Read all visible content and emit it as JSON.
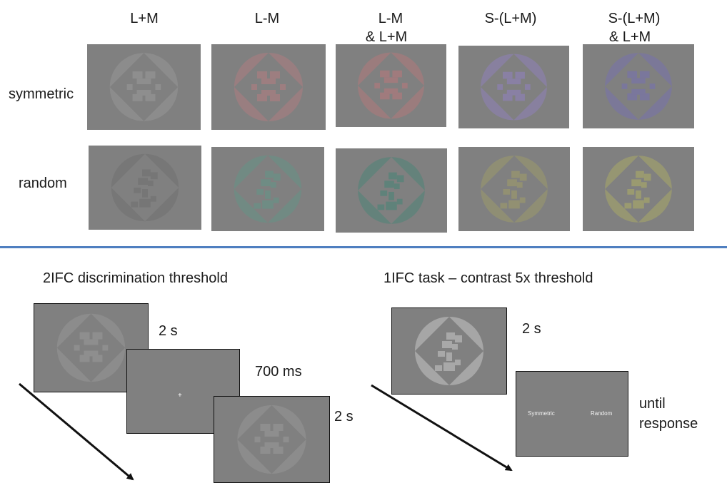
{
  "columns": [
    "L+M",
    "L-M\n& L+M",
    "S-(L+M)\n& L+M",
    "L-M",
    "S-(L+M)"
  ],
  "column_labels": {
    "lm": "L+M",
    "lminusm": "L-M",
    "lminusm_lm_1": "L-M",
    "lminusm_lm_2": "& L+M",
    "s": "S-(L+M)",
    "s_lm_1": "S-(L+M)",
    "s_lm_2": "& L+M"
  },
  "rows": {
    "symmetric": "symmetric",
    "random": "random"
  },
  "stimulus_colors": {
    "lm": "#8e8e8e",
    "lminusm": "#9d7e80",
    "lminusm_lm": "#a07b7d",
    "s": "#8980a4",
    "s_lm": "#7a779c",
    "lm_random": "#767676",
    "lminusm_random": "#6f8c84",
    "lminusm_lm_random": "#5f827a",
    "s_random": "#929072",
    "s_lm_random": "#9a9a70"
  },
  "threshold": {
    "title": "2IFC discrimination threshold",
    "d1": "2 s",
    "d2": "700 ms",
    "d3": "2 s",
    "fixation": "+"
  },
  "task": {
    "title": "1IFC task – contrast 5x threshold",
    "d1": "2 s",
    "d2a": "until",
    "d2b": "response",
    "opt_left": "Symmetric",
    "opt_right": "Random"
  }
}
